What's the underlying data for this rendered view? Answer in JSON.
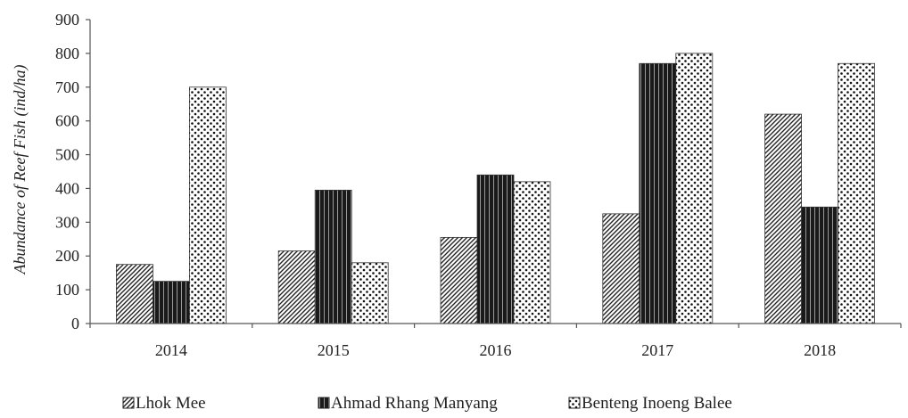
{
  "chart_data": {
    "type": "bar",
    "categories": [
      "2014",
      "2015",
      "2016",
      "2017",
      "2018"
    ],
    "series": [
      {
        "name": "Lhok Mee",
        "values": [
          175,
          215,
          255,
          325,
          620
        ],
        "pattern": "diagonal-hatch"
      },
      {
        "name": "Ahmad Rhang Manyang",
        "values": [
          125,
          395,
          440,
          770,
          345
        ],
        "pattern": "dark-vertical-stripes"
      },
      {
        "name": "Benteng Inoeng Balee",
        "values": [
          700,
          180,
          420,
          800,
          770
        ],
        "pattern": "dots"
      }
    ],
    "ylabel": "Abundance of Reef Fish (ind/ha)",
    "xlabel": "",
    "ylim": [
      0,
      900
    ],
    "yticks": [
      0,
      100,
      200,
      300,
      400,
      500,
      600,
      700,
      800,
      900
    ],
    "grid": false,
    "legend_position": "bottom"
  }
}
